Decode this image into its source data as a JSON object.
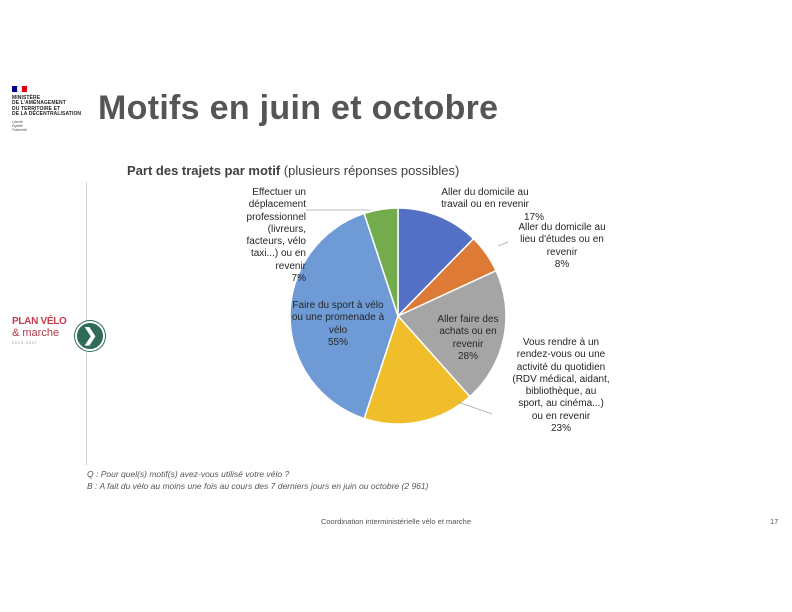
{
  "header": {
    "ministry_lines": [
      "MINISTÈRE",
      "DE L'AMÉNAGEMENT",
      "DU TERRITOIRE ET",
      "DE LA DÉCENTRALISATION"
    ],
    "motto": [
      "Liberté",
      "Égalité",
      "Fraternité"
    ],
    "flag_colors": [
      "#000091",
      "#ffffff",
      "#e1000f"
    ],
    "title": "Motifs en juin et octobre"
  },
  "side_logo": {
    "line1": "PLAN VÉLO",
    "line2": "& marche",
    "line3": "2023-2027"
  },
  "nav": {
    "icon": "chevron-right-icon",
    "glyph": "❯"
  },
  "chart_data": {
    "type": "pie",
    "title_bold": "Part des trajets par motif",
    "title_rest": "(plusieurs réponses possibles)",
    "slices": [
      {
        "label_lines": [
          "Aller du domicile au",
          "travail ou en revenir"
        ],
        "value_label": "17%",
        "value": 17,
        "color": "#5470c4"
      },
      {
        "label_lines": [
          "Aller du domicile au",
          "lieu d'études ou en",
          "revenir"
        ],
        "value_label": "8%",
        "value": 8,
        "color": "#dd7a35"
      },
      {
        "label_lines": [
          "Aller faire des",
          "achats ou en",
          "revenir"
        ],
        "value_label": "28%",
        "value": 28,
        "color": "#a5a5a5"
      },
      {
        "label_lines": [
          "Vous rendre à un",
          "rendez-vous ou une",
          "activité du quotidien",
          "(RDV médical, aidant,",
          "bibliothèque, au",
          "sport, au cinéma...)",
          "ou en revenir"
        ],
        "value_label": "23%",
        "value": 23,
        "color": "#f1be2b"
      },
      {
        "label_lines": [
          "Faire du sport à vélo",
          "ou une promenade à",
          "vélo"
        ],
        "value_label": "55%",
        "value": 55,
        "color": "#6e9bd6"
      },
      {
        "label_lines": [
          "Effectuer un",
          "déplacement",
          "professionnel",
          "(livreurs,",
          "facteurs, vélo",
          "taxi...) ou en",
          "revenir"
        ],
        "value_label": "7%",
        "value": 7,
        "color": "#72ac4c"
      }
    ]
  },
  "notes": {
    "question": "Q : Pour quel(s) motif(s) avez-vous utilisé votre vélo ?",
    "base": "B : A fait du vélo au moins une fois au cours des 7 derniers jours en juin ou octobre (2 961)"
  },
  "footer": {
    "text": "Coordination interministérielle vélo et marche",
    "page": "17"
  }
}
